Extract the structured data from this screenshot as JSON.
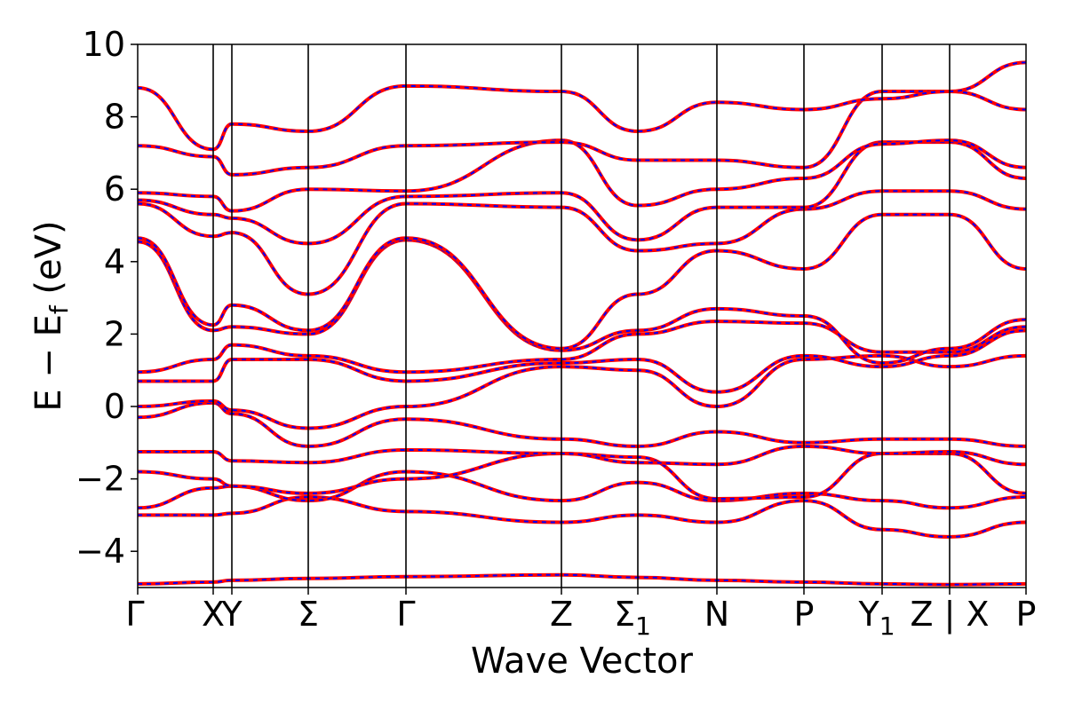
{
  "chart_data": {
    "type": "line",
    "title": "",
    "xlabel": "Wave Vector",
    "ylabel": "E − E",
    "ylabel_subscript": "f",
    "ylabel_unit": "(eV)",
    "ylim": [
      -5,
      10
    ],
    "yticks": [
      -4,
      -2,
      0,
      2,
      4,
      6,
      8,
      10
    ],
    "ytick_labels": [
      "−4",
      "−2",
      "0",
      "2",
      "4",
      "6",
      "8",
      "10"
    ],
    "xlim": [
      0,
      1
    ],
    "kpoints": [
      {
        "label": "Γ",
        "x": 0.0
      },
      {
        "label": "X",
        "x": 0.085
      },
      {
        "label": "Y",
        "x": 0.106
      },
      {
        "label": "Σ",
        "x": 0.192
      },
      {
        "label": "Γ",
        "x": 0.302
      },
      {
        "label": "Z",
        "x": 0.477
      },
      {
        "label": "Σ",
        "sub": "1",
        "x": 0.563
      },
      {
        "label": "N",
        "x": 0.652
      },
      {
        "label": "P",
        "x": 0.75
      },
      {
        "label": "Y",
        "sub": "1",
        "x": 0.838
      },
      {
        "label": "Z",
        "x": 0.914
      },
      {
        "label": "| X",
        "x": 0.914
      },
      {
        "label": "P",
        "x": 1.0
      }
    ],
    "kpoint_tick_labels": [
      "Γ",
      "X",
      "Y",
      "Σ",
      "Γ",
      "Z",
      "Σ1",
      "N",
      "P",
      "Y1",
      "Z | X",
      "P"
    ],
    "series_colors": {
      "solid": "#ff0000",
      "dashed": "#0000ff"
    },
    "series": [
      {
        "values": [
          -4.9,
          -4.85,
          -4.8,
          -4.75,
          -4.7,
          -4.65,
          -4.72,
          -4.8,
          -4.85,
          -4.9,
          -4.92,
          -4.95,
          -4.9
        ]
      },
      {
        "values": [
          -3.0,
          -3.0,
          -2.95,
          -2.5,
          -2.9,
          -3.2,
          -3.0,
          -3.2,
          -2.6,
          -3.4,
          -3.6,
          -3.6,
          -3.2
        ]
      },
      {
        "values": [
          -2.8,
          -2.25,
          -2.2,
          -2.6,
          -1.8,
          -2.6,
          -2.1,
          -2.6,
          -2.4,
          -2.6,
          -2.8,
          -2.3,
          -2.5
        ]
      },
      {
        "values": [
          -1.8,
          -2.0,
          -2.2,
          -2.4,
          -2.0,
          -1.3,
          -1.4,
          -2.55,
          -2.5,
          -1.3,
          -1.3,
          -3.0,
          -2.4
        ]
      },
      {
        "values": [
          -1.25,
          -1.25,
          -1.5,
          -1.55,
          -1.2,
          -1.3,
          -1.55,
          -1.6,
          -1.1,
          -1.3,
          -1.25,
          -1.5,
          -1.6
        ]
      },
      {
        "values": [
          -0.3,
          0.1,
          -0.2,
          -1.1,
          -0.35,
          -0.9,
          -1.1,
          -0.7,
          -1.0,
          -0.9,
          -0.9,
          0.1,
          -1.1
        ]
      },
      {
        "values": [
          0.0,
          0.15,
          -0.1,
          -0.6,
          0.0,
          1.1,
          1.0,
          0.0,
          1.3,
          1.4,
          1.1,
          0.7,
          1.4
        ]
      },
      {
        "values": [
          0.7,
          0.7,
          1.3,
          1.3,
          0.7,
          1.2,
          1.3,
          0.4,
          1.4,
          1.1,
          1.4,
          2.0,
          2.1
        ]
      },
      {
        "values": [
          0.95,
          1.3,
          1.7,
          1.4,
          0.95,
          1.3,
          2.0,
          2.35,
          2.3,
          1.5,
          1.5,
          2.3,
          2.2
        ]
      },
      {
        "values": [
          4.55,
          2.1,
          2.2,
          2.0,
          4.6,
          1.55,
          2.1,
          2.7,
          2.5,
          1.2,
          1.6,
          4.7,
          2.4
        ]
      },
      {
        "values": [
          4.65,
          2.25,
          2.8,
          2.1,
          4.65,
          1.6,
          3.1,
          4.3,
          3.8,
          5.3,
          5.3,
          4.6,
          3.8
        ]
      },
      {
        "values": [
          5.6,
          4.7,
          4.8,
          3.1,
          5.6,
          5.5,
          4.3,
          4.5,
          5.45,
          5.95,
          5.95,
          5.3,
          5.45
        ]
      },
      {
        "values": [
          5.7,
          5.3,
          5.2,
          4.5,
          5.8,
          5.9,
          4.6,
          5.5,
          5.5,
          7.3,
          7.3,
          5.4,
          6.3
        ]
      },
      {
        "values": [
          5.9,
          5.8,
          5.4,
          6.0,
          5.95,
          7.35,
          5.55,
          6.0,
          6.3,
          7.25,
          7.35,
          6.4,
          6.6
        ]
      },
      {
        "values": [
          7.2,
          6.9,
          6.4,
          6.6,
          7.2,
          7.3,
          6.8,
          6.8,
          6.6,
          8.7,
          8.7,
          6.9,
          8.2
        ]
      },
      {
        "values": [
          8.8,
          7.1,
          7.8,
          7.6,
          8.85,
          8.7,
          7.6,
          8.4,
          8.2,
          8.5,
          8.7,
          9.1,
          9.5
        ]
      }
    ]
  }
}
